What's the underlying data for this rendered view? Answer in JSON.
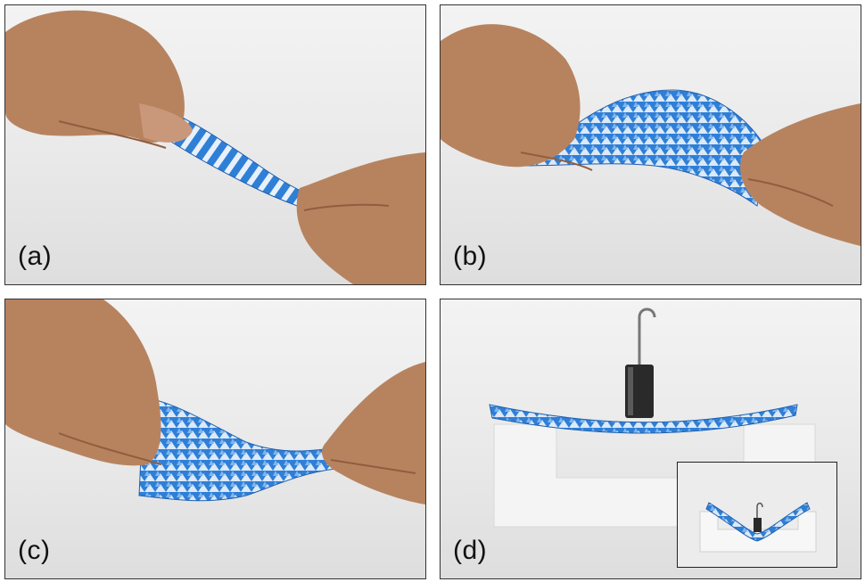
{
  "panels": [
    {
      "id": "a",
      "label": "(a)"
    },
    {
      "id": "b",
      "label": "(b)"
    },
    {
      "id": "c",
      "label": "(c)"
    },
    {
      "id": "d",
      "label": "(d)"
    }
  ],
  "colors": {
    "sheet_blue": "#2f7fd6",
    "sheet_light": "#7fb6ee",
    "skin": "#b7835f",
    "skin_dark": "#8f5d3f",
    "foam": "#f4f4f4",
    "weight": "#2a2a2a"
  }
}
